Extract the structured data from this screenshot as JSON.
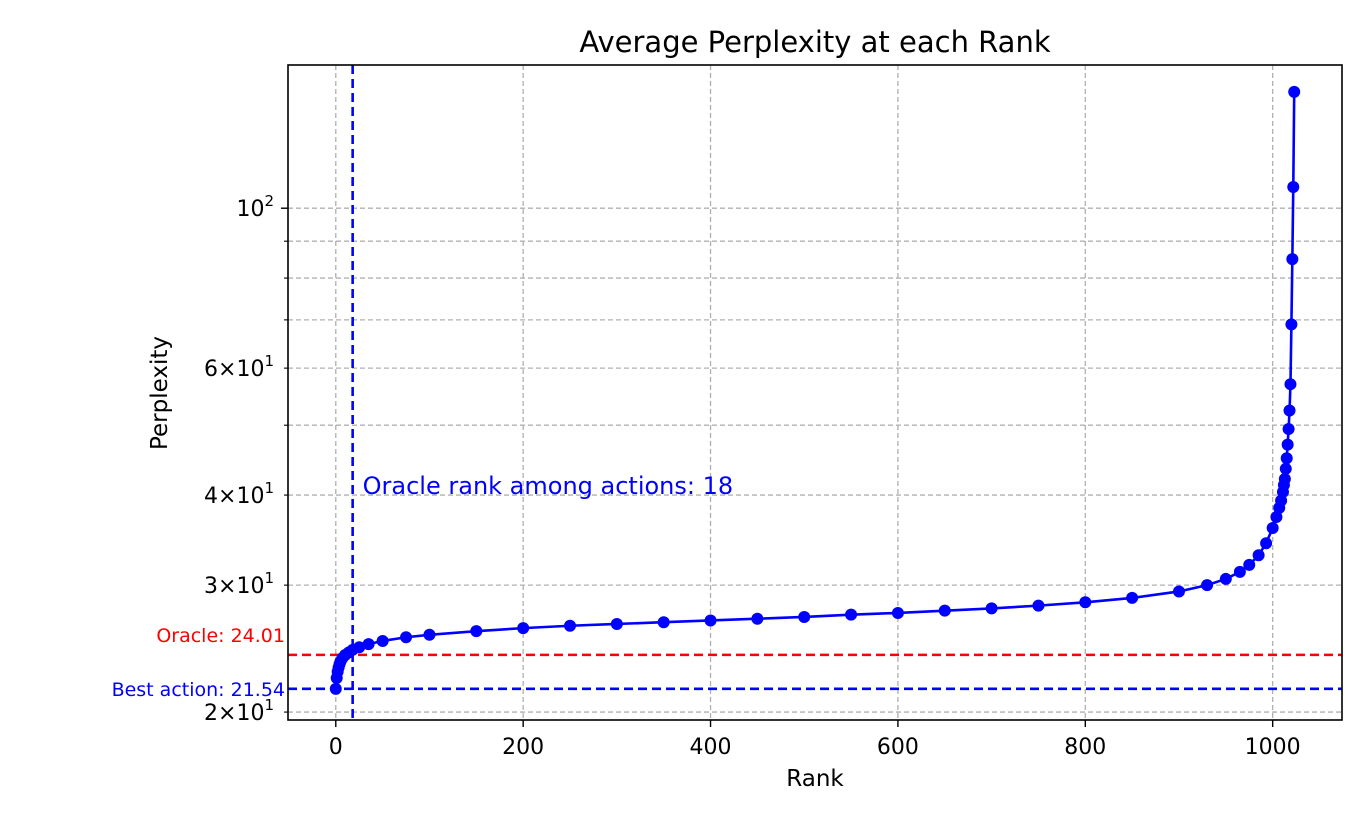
{
  "chart_data": {
    "type": "line",
    "title": "Average Perplexity at each Rank",
    "xlabel": "Rank",
    "ylabel": "Perplexity",
    "xlim": [
      -51,
      1074
    ],
    "ylim": [
      19.5,
      158
    ],
    "yscale": "log",
    "grid": true,
    "x_ticks": [
      {
        "value": 0,
        "label": "0"
      },
      {
        "value": 200,
        "label": "200"
      },
      {
        "value": 400,
        "label": "400"
      },
      {
        "value": 600,
        "label": "600"
      },
      {
        "value": 800,
        "label": "800"
      },
      {
        "value": 1000,
        "label": "1000"
      }
    ],
    "y_major_ticks": [
      {
        "value": 100,
        "base": "10",
        "exp": "2"
      }
    ],
    "y_minor_ticks": [
      {
        "value": 20,
        "coef": "2",
        "base": "10",
        "exp": "1"
      },
      {
        "value": 30,
        "coef": "3",
        "base": "10",
        "exp": "1"
      },
      {
        "value": 40,
        "coef": "4",
        "base": "10",
        "exp": "1"
      },
      {
        "value": 50
      },
      {
        "value": 60,
        "coef": "6",
        "base": "10",
        "exp": "1"
      },
      {
        "value": 70
      },
      {
        "value": 80
      },
      {
        "value": 90
      }
    ],
    "series": [
      {
        "color": "#0000ff",
        "points": [
          [
            0,
            21.54
          ],
          [
            1,
            22.3
          ],
          [
            2,
            22.75
          ],
          [
            3,
            23.05
          ],
          [
            4,
            23.3
          ],
          [
            5,
            23.5
          ],
          [
            7,
            23.75
          ],
          [
            10,
            24.0
          ],
          [
            14,
            24.2
          ],
          [
            18,
            24.4
          ],
          [
            25,
            24.6
          ],
          [
            35,
            24.85
          ],
          [
            50,
            25.1
          ],
          [
            75,
            25.4
          ],
          [
            100,
            25.6
          ],
          [
            150,
            25.9
          ],
          [
            200,
            26.15
          ],
          [
            250,
            26.35
          ],
          [
            300,
            26.5
          ],
          [
            350,
            26.65
          ],
          [
            400,
            26.8
          ],
          [
            450,
            26.95
          ],
          [
            500,
            27.1
          ],
          [
            550,
            27.3
          ],
          [
            600,
            27.45
          ],
          [
            650,
            27.65
          ],
          [
            700,
            27.85
          ],
          [
            750,
            28.1
          ],
          [
            800,
            28.4
          ],
          [
            850,
            28.8
          ],
          [
            900,
            29.4
          ],
          [
            930,
            30.0
          ],
          [
            950,
            30.6
          ],
          [
            965,
            31.3
          ],
          [
            975,
            32.0
          ],
          [
            985,
            33.0
          ],
          [
            993,
            34.3
          ],
          [
            1000,
            36.0
          ],
          [
            1004,
            37.3
          ],
          [
            1007,
            38.4
          ],
          [
            1009,
            39.3
          ],
          [
            1011,
            40.4
          ],
          [
            1012,
            41.3
          ],
          [
            1013,
            42.1
          ],
          [
            1014,
            43.5
          ],
          [
            1015,
            45.0
          ],
          [
            1016,
            47.0
          ],
          [
            1017,
            49.4
          ],
          [
            1018,
            52.4
          ],
          [
            1019,
            57.0
          ],
          [
            1020,
            69.0
          ],
          [
            1021,
            85.0
          ],
          [
            1022,
            107.0
          ],
          [
            1023,
            145.0
          ]
        ]
      }
    ],
    "annotations": {
      "oracle_rank": {
        "x": 18,
        "text": "Oracle rank among actions: 18",
        "color": "#0000ff"
      },
      "oracle_line": {
        "y": 24.01,
        "label": "Oracle: 24.01",
        "color": "#ff0000"
      },
      "best_line": {
        "y": 21.54,
        "label": "Best action: 21.54",
        "color": "#0000ff"
      }
    }
  }
}
